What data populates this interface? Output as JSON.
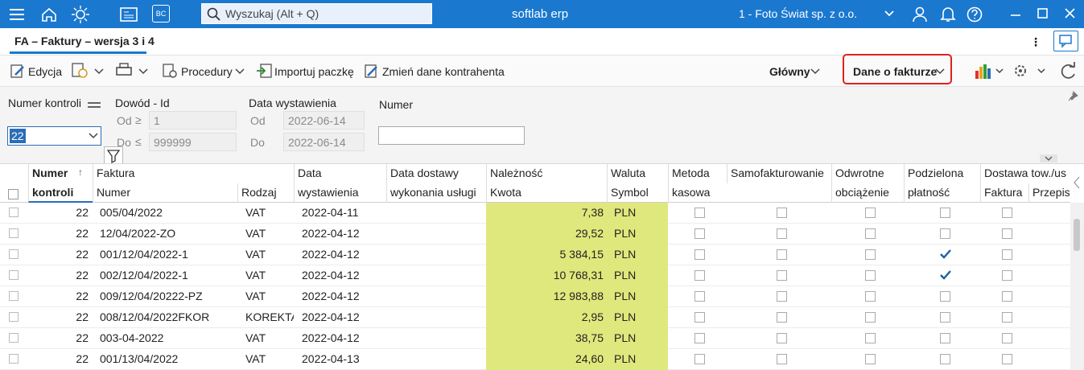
{
  "topbar": {
    "search_placeholder": "Wyszukaj (Alt + Q)",
    "app_name": "softlab erp",
    "company": "1 - Foto Świat sp. z o.o.",
    "bc_icon": "BC"
  },
  "tab": {
    "title": "FA – Faktury – wersja 3 i 4"
  },
  "toolbar": {
    "edit": "Edycja",
    "procedures": "Procedury",
    "import": "Importuj paczkę",
    "change_contractor": "Zmień dane kontrahenta",
    "view_main": "Główny",
    "view_invoice": "Dane o fakturze"
  },
  "filters": {
    "control_label": "Numer kontroli",
    "control_value": "22",
    "doc_label": "Dowód - Id",
    "doc_from_label": "Od",
    "doc_from": "1",
    "doc_to_label": "Do",
    "doc_to": "999999",
    "date_label": "Data wystawienia",
    "date_from_label": "Od",
    "date_from": "2022-06-14",
    "date_to_label": "Do",
    "date_to": "2022-06-14",
    "number_label": "Numer"
  },
  "table": {
    "header_top": [
      "Numer",
      "Faktura",
      "Data",
      "Data dostawy",
      "Należność",
      "Waluta",
      "Metoda",
      "Samofakturowanie",
      "Odwrotne",
      "Podzielona",
      "Dostawa tow./us"
    ],
    "header_bottom": [
      "kontroli",
      "Numer",
      "Rodzaj",
      "wystawienia",
      "wykonania usługi",
      "Kwota",
      "Symbol",
      "kasowa",
      "obciążenie",
      "płatność",
      "Faktura",
      "Przepis"
    ],
    "rows": [
      [
        "22",
        "005/04/2022",
        "VAT",
        "2022-04-11",
        "7,38",
        "PLN"
      ],
      [
        "22",
        "12/04/2022-ZO",
        "VAT",
        "2022-04-12",
        "29,52",
        "PLN"
      ],
      [
        "22",
        "001/12/04/2022-1",
        "VAT",
        "2022-04-12",
        "5 384,15",
        "PLN"
      ],
      [
        "22",
        "002/12/04/2022-1",
        "VAT",
        "2022-04-12",
        "10 768,31",
        "PLN"
      ],
      [
        "22",
        "009/12/04/20222-PZ",
        "VAT",
        "2022-04-12",
        "12 983,88",
        "PLN"
      ],
      [
        "22",
        "008/12/04/2022FKOR",
        "KOREKTA",
        "2022-04-12",
        "2,95",
        "PLN"
      ],
      [
        "22",
        "003-04-2022",
        "VAT",
        "2022-04-12",
        "38,75",
        "PLN"
      ],
      [
        "22",
        "001/13/04/2022",
        "VAT",
        "2022-04-13",
        "24,60",
        "PLN"
      ]
    ],
    "checks": [
      [
        false,
        false,
        false,
        false,
        false
      ],
      [
        false,
        false,
        false,
        false,
        false
      ],
      [
        false,
        false,
        false,
        true,
        false
      ],
      [
        false,
        false,
        false,
        true,
        false
      ],
      [
        false,
        false,
        false,
        false,
        false
      ],
      [
        false,
        false,
        false,
        false,
        false
      ],
      [
        false,
        false,
        false,
        false,
        false
      ],
      [
        false,
        false,
        false,
        false,
        false
      ]
    ]
  }
}
